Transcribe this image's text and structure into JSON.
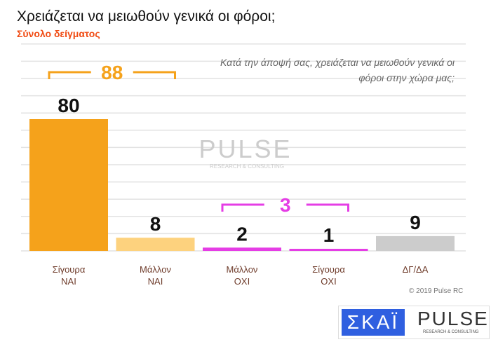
{
  "chart_data": {
    "type": "bar",
    "title": "Χρειάζεται να μειωθούν γενικά οι φόροι;",
    "subtitle": "Σύνολο δείγματος",
    "question": "Κατά την άποψή σας, χρειάζεται να μειωθούν γενικά οι φόροι στην χώρα μας;",
    "categories": [
      [
        "Σίγουρα",
        "ΝΑΙ"
      ],
      [
        "Μάλλον",
        "ΝΑΙ"
      ],
      [
        "Μάλλον",
        "ΟΧΙ"
      ],
      [
        "Σίγουρα",
        "ΟΧΙ"
      ],
      [
        "ΔΓ/ΔΑ",
        ""
      ]
    ],
    "values": [
      80,
      8,
      2,
      1,
      9
    ],
    "colors": [
      "#f5a21b",
      "#fdd27e",
      "#e53de5",
      "#e53de5",
      "#cccccc"
    ],
    "groups": [
      {
        "label": "88",
        "from": 0,
        "to": 1,
        "color": "#f5a21b"
      },
      {
        "label": "3",
        "from": 2,
        "to": 3,
        "color": "#e53de5"
      }
    ],
    "ylim": [
      0,
      100
    ],
    "grid": true
  },
  "footer": {
    "copyright": "© 2019 Pulse RC",
    "logo_skai": "ΣΚΑΪ",
    "logo_pulse": "PULSE",
    "logo_pulse_sub": "RESEARCH & CONSULTING"
  },
  "watermark": {
    "text": "PULSE",
    "sub": "RESEARCH & CONSULTING"
  }
}
